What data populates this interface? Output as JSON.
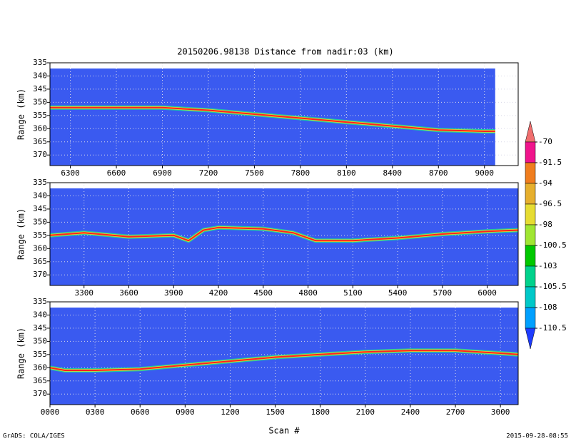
{
  "title": "20150206.98138    Distance from nadir:03 (km)",
  "x_label": "Scan #",
  "credit": "GrADS: COLA/IGES",
  "timestamp": "2015-09-28-08:55",
  "colorbar": {
    "levels": [
      -70,
      -91.5,
      -94,
      -96.5,
      -98,
      -100.5,
      -103,
      -105.5,
      -108,
      -110.5
    ],
    "colors": [
      "#f06e6e",
      "#f0148c",
      "#f07d1e",
      "#e6af2d",
      "#e6dc32",
      "#a0e632",
      "#00c800",
      "#00d28c",
      "#00c8c8",
      "#00a0ff",
      "#1e3cff"
    ]
  },
  "chart_data": [
    {
      "type": "line",
      "y_label": "Range (km)",
      "background": "#3a5af0",
      "grid": true,
      "xlim": [
        6167,
        9220
      ],
      "xticks": [
        6300,
        6600,
        6900,
        7200,
        7500,
        7800,
        8100,
        8400,
        8700,
        9000
      ],
      "ylim": [
        374,
        335
      ],
      "yticks": [
        335,
        340,
        345,
        350,
        355,
        360,
        365,
        370
      ],
      "x": [
        6167,
        6600,
        6900,
        7200,
        7500,
        7800,
        8100,
        8400,
        8700,
        9000,
        9070
      ],
      "series": [
        {
          "color": "#ff2020",
          "values": [
            352,
            352,
            352,
            353,
            354.5,
            356,
            357.5,
            359,
            360.5,
            361,
            361
          ]
        }
      ]
    },
    {
      "type": "line",
      "y_label": "Range (km)",
      "background": "#3a5af0",
      "grid": true,
      "xlim": [
        3072,
        6207
      ],
      "xticks": [
        3300,
        3600,
        3900,
        4200,
        4500,
        4800,
        5100,
        5400,
        5700,
        6000
      ],
      "ylim": [
        374,
        335
      ],
      "yticks": [
        335,
        340,
        345,
        350,
        355,
        360,
        365,
        370
      ],
      "x": [
        3072,
        3300,
        3600,
        3900,
        4000,
        4100,
        4200,
        4500,
        4700,
        4850,
        5100,
        5400,
        5700,
        6000,
        6207
      ],
      "series": [
        {
          "color": "#ff2020",
          "values": [
            355,
            354,
            355.5,
            355,
            357,
            353,
            352,
            352.5,
            354,
            357,
            357,
            356,
            354.5,
            353.5,
            353
          ]
        }
      ]
    },
    {
      "type": "line",
      "y_label": "Range (km)",
      "background": "#3a5af0",
      "grid": true,
      "xlim": [
        0,
        3118
      ],
      "xticks": [
        {
          "value": 0,
          "label": "0000"
        },
        {
          "value": 300,
          "label": "0300"
        },
        {
          "value": 600,
          "label": "0600"
        },
        {
          "value": 900,
          "label": "0900"
        },
        1200,
        1500,
        1800,
        2100,
        2400,
        2700,
        3000
      ],
      "ylim": [
        374,
        335
      ],
      "yticks": [
        335,
        340,
        345,
        350,
        355,
        360,
        365,
        370
      ],
      "x": [
        0,
        100,
        300,
        600,
        900,
        1200,
        1500,
        1800,
        2100,
        2400,
        2700,
        3000,
        3118
      ],
      "series": [
        {
          "color": "#ff2020",
          "values": [
            360,
            361,
            361,
            360.5,
            359,
            357.5,
            356,
            355,
            354,
            353.5,
            353.5,
            354.5,
            355
          ]
        }
      ]
    }
  ]
}
